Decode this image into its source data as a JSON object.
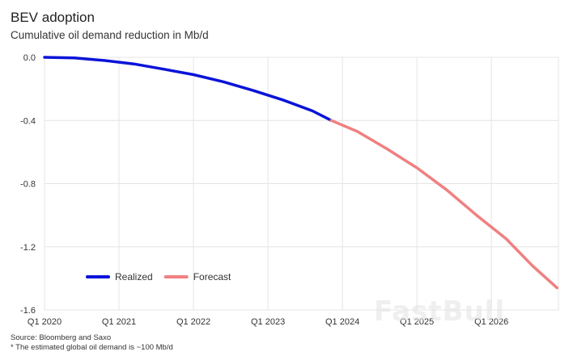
{
  "chart_data": {
    "type": "line",
    "title": "BEV adoption",
    "subtitle": "Cumulative oil demand reduction in Mb/d",
    "xlabel": "",
    "ylabel": "",
    "x_ticks": [
      "Q1 2020",
      "Q1 2021",
      "Q1 2022",
      "Q1 2023",
      "Q1 2024",
      "Q1 2025",
      "Q1 2026"
    ],
    "y_ticks": [
      "0.0",
      "-0.4",
      "-0.8",
      "-1.2",
      "-1.6"
    ],
    "ylim": [
      -1.6,
      0.0
    ],
    "xlim": [
      2020.0,
      2026.9
    ],
    "grid": true,
    "legend_position": "bottom-left",
    "series": [
      {
        "name": "Realized",
        "color": "#0a14d8",
        "x": [
          2020.0,
          2020.4,
          2020.8,
          2021.2,
          2021.6,
          2022.0,
          2022.4,
          2022.8,
          2023.2,
          2023.6,
          2023.85
        ],
        "y": [
          0.0,
          -0.004,
          -0.02,
          -0.042,
          -0.075,
          -0.11,
          -0.155,
          -0.21,
          -0.27,
          -0.34,
          -0.4
        ]
      },
      {
        "name": "Forecast",
        "color": "#f08080",
        "x": [
          2023.85,
          2024.2,
          2024.6,
          2025.0,
          2025.4,
          2025.8,
          2026.2,
          2026.55,
          2026.88
        ],
        "y": [
          -0.4,
          -0.47,
          -0.58,
          -0.7,
          -0.84,
          -1.0,
          -1.15,
          -1.32,
          -1.46
        ]
      }
    ]
  },
  "source_note": "Source: Bloomberg and Saxo",
  "footnote": "* The estimated global oil demand is ~100 Mb/d",
  "watermark": "FastBull"
}
